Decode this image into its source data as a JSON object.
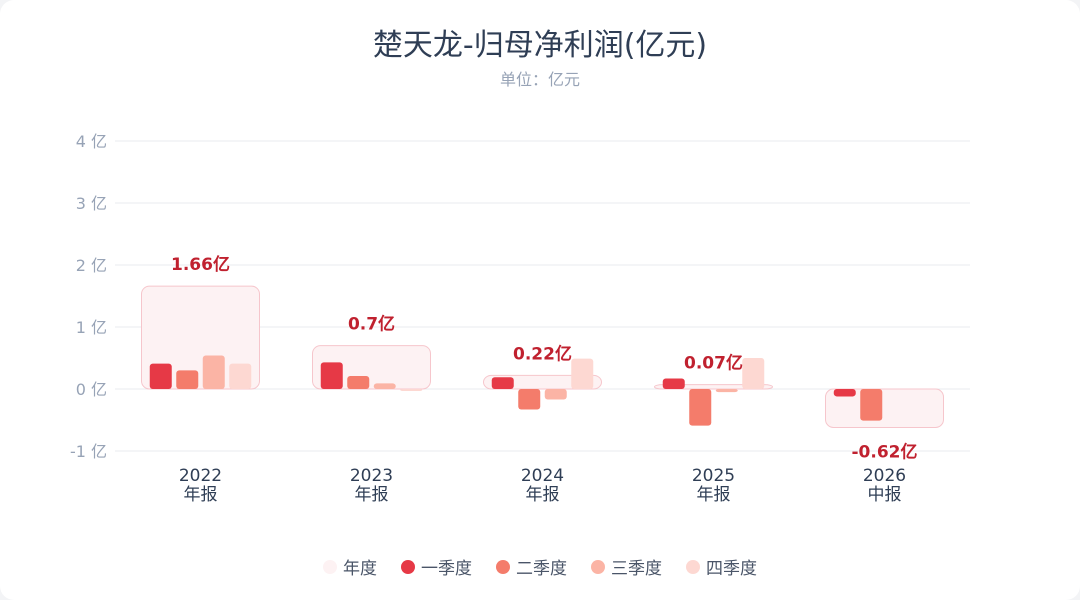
{
  "header": {
    "title": "楚天龙-归母净利润(亿元)",
    "subtitle": "单位：亿元"
  },
  "colors": {
    "annual_fill": "#fdf2f3",
    "annual_stroke": "#f6c6cc",
    "q1": "#e63946",
    "q2": "#f47c6b",
    "q3": "#fbb4a5",
    "q4": "#fdd8d2",
    "annual_label": "#c0212f",
    "grid": "#e8ebef",
    "axis_text": "#97a3b6",
    "category_text": "#2f3e55"
  },
  "chart_data": {
    "type": "bar",
    "title": "楚天龙-归母净利润(亿元)",
    "subtitle": "单位：亿元",
    "ylim": [
      -1,
      4
    ],
    "yticks": [
      -1,
      0,
      1,
      2,
      3,
      4
    ],
    "ytick_labels": [
      "-1 亿",
      "0 亿",
      "1 亿",
      "2 亿",
      "3 亿",
      "4 亿"
    ],
    "categories": [
      {
        "year": "2022",
        "period": "年报"
      },
      {
        "year": "2023",
        "period": "年报"
      },
      {
        "year": "2024",
        "period": "年报"
      },
      {
        "year": "2025",
        "period": "年报"
      },
      {
        "year": "2026",
        "period": "中报"
      }
    ],
    "series": [
      {
        "name": "年度",
        "values": [
          1.66,
          0.7,
          0.22,
          0.07,
          -0.62
        ],
        "labels": [
          "1.66亿",
          "0.7亿",
          "0.22亿",
          "0.07亿",
          "-0.62亿"
        ]
      },
      {
        "name": "一季度",
        "values": [
          0.41,
          0.43,
          0.19,
          0.17,
          -0.12
        ]
      },
      {
        "name": "二季度",
        "values": [
          0.3,
          0.21,
          -0.33,
          -0.59,
          -0.51
        ]
      },
      {
        "name": "三季度",
        "values": [
          0.54,
          0.09,
          -0.17,
          -0.05,
          null
        ]
      },
      {
        "name": "四季度",
        "values": [
          0.41,
          -0.03,
          0.49,
          0.5,
          null
        ]
      }
    ],
    "grid": true,
    "legend_position": "bottom-center"
  }
}
